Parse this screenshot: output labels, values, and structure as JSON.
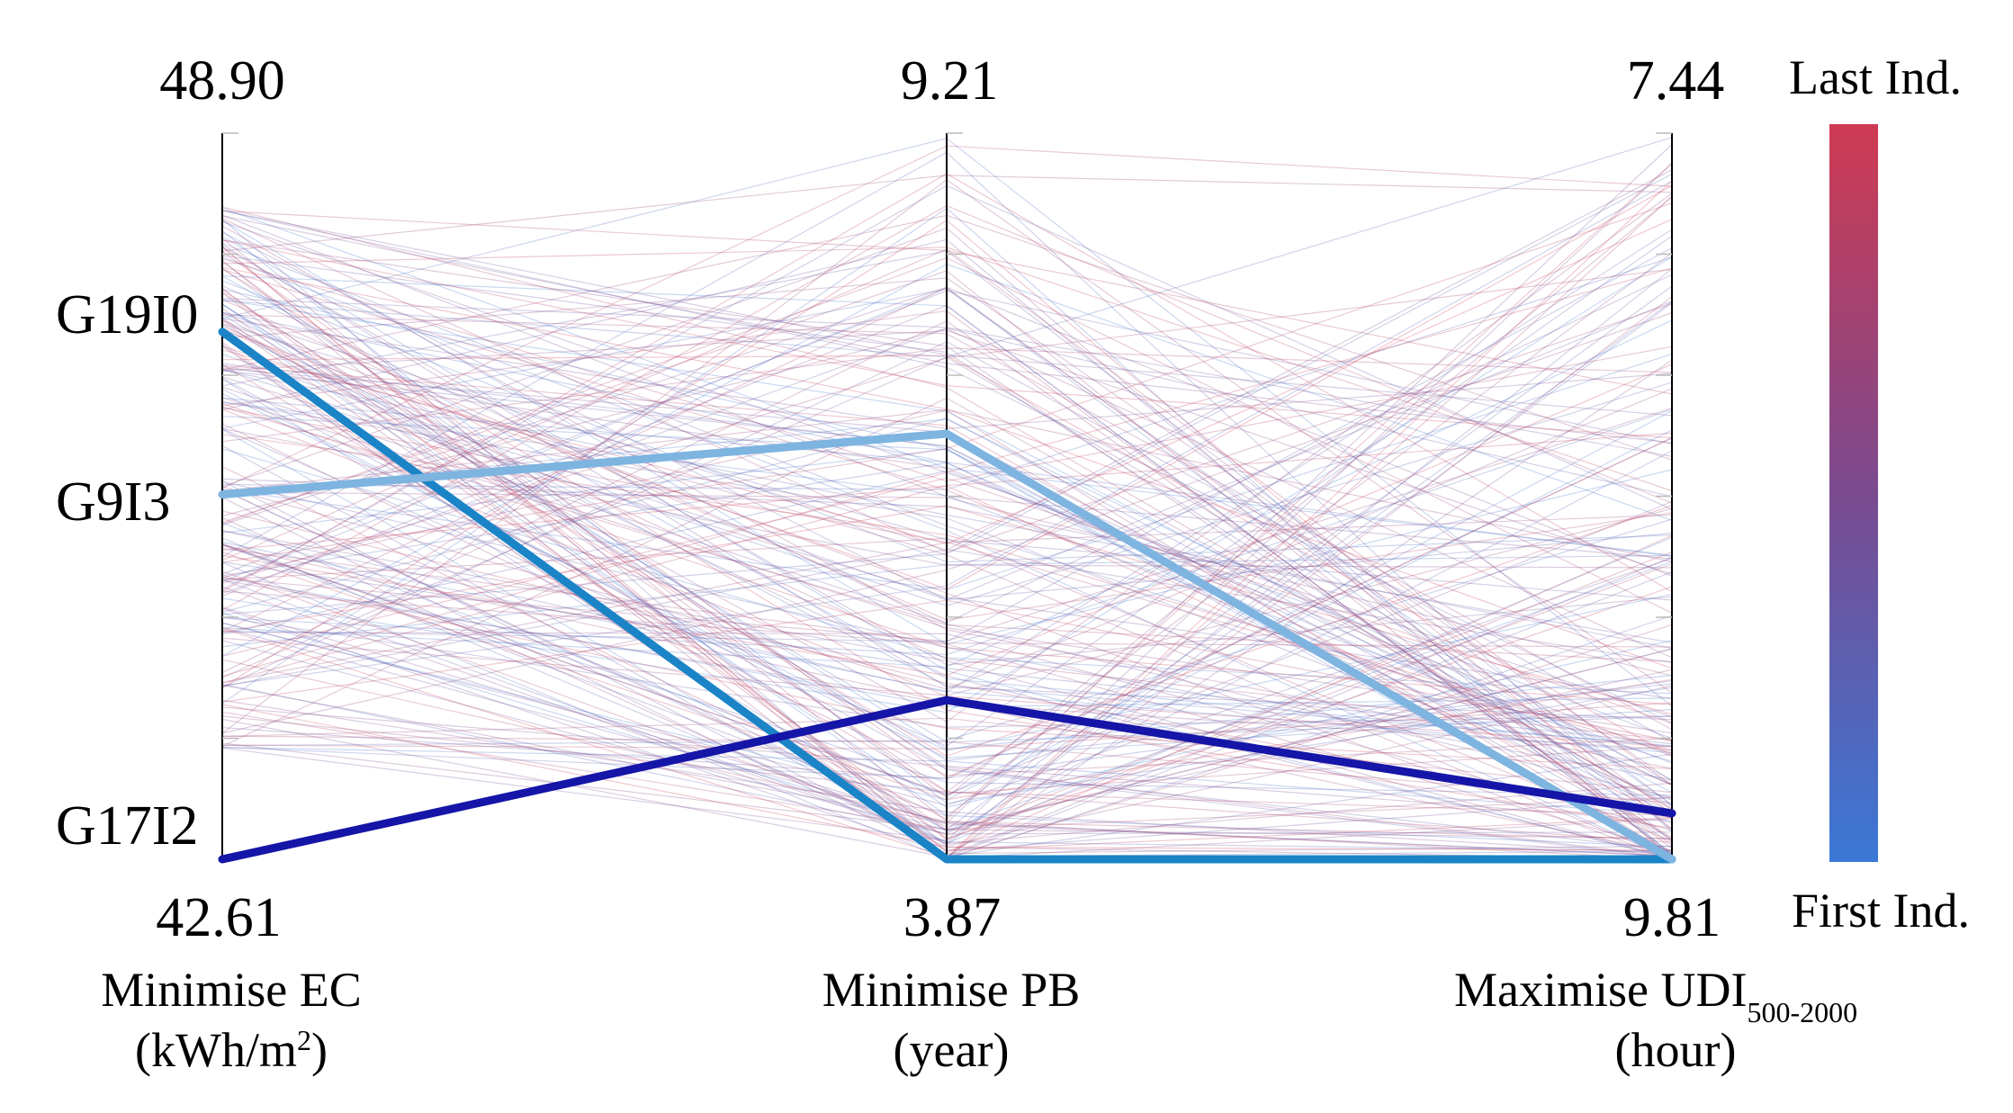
{
  "chart_data": {
    "type": "parallel-coordinates",
    "axes": [
      {
        "id": "ec",
        "label": "Minimise EC",
        "unit_base": "(kWh/m",
        "unit_sup": "2",
        "unit_close": ")",
        "top_label": "48.90",
        "bottom_label": "42.61",
        "top": 48.9,
        "bottom": 42.61
      },
      {
        "id": "pb",
        "label": "Minimise PB",
        "unit": "(year)",
        "top_label": "9.21",
        "bottom_label": "3.87",
        "top": 9.21,
        "bottom": 3.87
      },
      {
        "id": "udi",
        "label": "Maximise UDI",
        "label_sub": "500-2000",
        "unit": "(hour)",
        "top_label": "7.44",
        "bottom_label": "9.81",
        "top": 7.44,
        "bottom": 9.81
      }
    ],
    "highlighted_solutions": [
      {
        "name": "G19I0",
        "ec": 47.18,
        "pb": 3.87,
        "udi": 9.81,
        "color": "#1a84c7"
      },
      {
        "name": "G9I3",
        "ec": 45.77,
        "pb": 7.0,
        "udi": 9.81,
        "color": "#7db4e0"
      },
      {
        "name": "G17I2",
        "ec": 42.61,
        "pb": 5.04,
        "udi": 9.66,
        "color": "#1515a8"
      }
    ],
    "colorbar": {
      "top_label": "Last Ind.",
      "bottom_label": "First Ind.",
      "top_color": "#cf3a52",
      "mid_color": "#7a4a8f",
      "bottom_color": "#3a78d6"
    },
    "background_individuals": 230
  }
}
